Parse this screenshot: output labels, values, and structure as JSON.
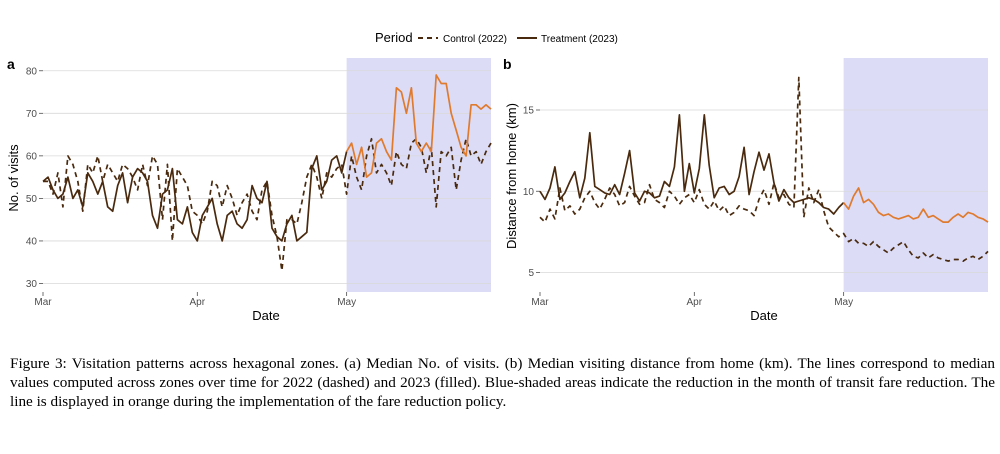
{
  "legend": {
    "title": "Period",
    "control_label": "Control (2022)",
    "treatment_label": "Treatment (2023)"
  },
  "colors": {
    "dark_line": "#4a2a0e",
    "policy_line": "#e07b2e",
    "shade": "#dcdcf7",
    "grid": "#d9d9d9"
  },
  "caption": "Figure 3: Visitation patterns across hexagonal zones. (a) Median No. of visits. (b) Median visiting distance from home (km). The lines correspond to median values computed across zones over time for 2022 (dashed) and 2023 (filled). Blue-shaded areas indicate the reduction in the month of transit fare reduction. The line is displayed in orange during the implementation of the fare reduction policy.",
  "chart_data": [
    {
      "type": "line",
      "panel": "a",
      "xlabel": "Date",
      "ylabel": "No. of visits",
      "x_unit": "day index from Mar 1",
      "x_ticks": [
        {
          "label": "Mar",
          "day": 0
        },
        {
          "label": "Apr",
          "day": 31
        },
        {
          "label": "May",
          "day": 61
        }
      ],
      "y_ticks": [
        30,
        40,
        50,
        60,
        70,
        80
      ],
      "xlim": [
        0,
        90
      ],
      "ylim": [
        28,
        83
      ],
      "shaded_region": {
        "from_day": 61,
        "to_day": 90
      },
      "policy_start_day": 61,
      "grid": true,
      "series": [
        {
          "name": "Control (2022)",
          "style": "dashed",
          "values": [
            54,
            54,
            51,
            56,
            48,
            60,
            58,
            54,
            47,
            58,
            56,
            60,
            54,
            58,
            56,
            54,
            58,
            57,
            55,
            52,
            58,
            53,
            60,
            58,
            45,
            58,
            40,
            57,
            55,
            53,
            47,
            46,
            44,
            47,
            54,
            53,
            48,
            53,
            50,
            46,
            49,
            51,
            47,
            45,
            52,
            54,
            46,
            41,
            33,
            45,
            45,
            44,
            49,
            55,
            58,
            55,
            50,
            56,
            55,
            57,
            58,
            51,
            60,
            55,
            52,
            60,
            64,
            56,
            58,
            56,
            53,
            61,
            58,
            57,
            63,
            64,
            62,
            56,
            62,
            48,
            61,
            60,
            62,
            52,
            59,
            64,
            60,
            61,
            58,
            61,
            63
          ]
        },
        {
          "name": "Treatment (2023)",
          "style": "solid",
          "values": [
            54,
            55,
            52,
            50,
            51,
            55,
            50,
            52,
            48,
            56,
            54,
            51,
            54,
            48,
            47,
            53,
            56,
            49,
            55,
            57,
            56,
            54,
            46,
            43,
            51,
            52,
            57,
            45,
            44,
            48,
            42,
            40,
            46,
            48,
            50,
            44,
            40,
            46,
            47,
            44,
            43,
            45,
            53,
            50,
            49,
            54,
            43,
            41,
            40,
            44,
            46,
            40,
            41,
            42,
            57,
            60,
            52,
            54,
            59,
            60,
            56,
            61,
            63,
            58,
            62,
            55,
            56,
            63,
            64,
            61,
            59,
            76,
            75,
            70,
            76,
            63,
            61,
            63,
            61,
            79,
            77,
            77,
            70,
            66,
            62,
            60,
            72,
            72,
            71,
            72,
            71
          ]
        }
      ]
    },
    {
      "type": "line",
      "panel": "b",
      "xlabel": "Date",
      "ylabel": "Distance from home (km)",
      "x_unit": "day index from Mar 1",
      "x_ticks": [
        {
          "label": "Mar",
          "day": 0
        },
        {
          "label": "Apr",
          "day": 31
        },
        {
          "label": "May",
          "day": 61
        }
      ],
      "y_ticks": [
        5,
        10,
        15
      ],
      "xlim": [
        0,
        90
      ],
      "ylim": [
        3.8,
        18.2
      ],
      "shaded_region": {
        "from_day": 61,
        "to_day": 90
      },
      "policy_start_day": 61,
      "grid": true,
      "series": [
        {
          "name": "Control (2022)",
          "style": "dashed",
          "values": [
            8.4,
            8.1,
            8.9,
            8.3,
            10.2,
            8.8,
            9.1,
            8.6,
            8.9,
            9.6,
            10.0,
            9.3,
            8.9,
            9.5,
            10.2,
            9.8,
            9.1,
            9.3,
            10.3,
            9.7,
            9.2,
            9.3,
            10.4,
            9.5,
            9.3,
            9.0,
            10.0,
            9.7,
            9.2,
            9.6,
            9.8,
            9.3,
            10.1,
            9.2,
            8.9,
            9.4,
            8.8,
            9.1,
            8.5,
            8.7,
            9.1,
            8.9,
            8.8,
            8.5,
            9.5,
            10.1,
            9.2,
            10.5,
            9.6,
            9.8,
            9.2,
            9.0,
            17.0,
            8.4,
            10.2,
            9.3,
            10.1,
            8.8,
            7.8,
            7.5,
            7.2,
            7.4,
            6.9,
            7.1,
            6.8,
            6.8,
            6.6,
            6.9,
            6.6,
            6.4,
            6.2,
            6.5,
            6.7,
            6.9,
            6.4,
            6.0,
            5.9,
            6.2,
            5.9,
            6.1,
            5.9,
            5.8,
            5.7,
            5.8,
            5.8,
            5.7,
            5.9,
            6.0,
            5.8,
            6.0,
            6.3
          ]
        },
        {
          "name": "Treatment (2023)",
          "style": "solid",
          "values": [
            10.0,
            9.5,
            10.2,
            11.5,
            9.5,
            9.9,
            10.6,
            11.2,
            9.6,
            10.8,
            13.6,
            10.3,
            10.1,
            9.9,
            9.8,
            10.4,
            9.8,
            11.1,
            12.5,
            9.9,
            9.4,
            10.0,
            9.9,
            9.6,
            9.7,
            10.6,
            10.3,
            11.5,
            14.7,
            10.0,
            11.7,
            9.9,
            11.4,
            14.7,
            11.6,
            9.6,
            10.2,
            10.3,
            9.8,
            10.0,
            10.9,
            12.7,
            9.8,
            11.2,
            12.4,
            11.3,
            12.3,
            10.5,
            9.4,
            10.1,
            9.6,
            9.3,
            9.4,
            9.5,
            9.6,
            9.5,
            9.3,
            9.0,
            8.9,
            8.6,
            9.0,
            9.3,
            8.9,
            9.7,
            10.2,
            9.3,
            9.5,
            9.2,
            8.7,
            8.5,
            8.6,
            8.4,
            8.3,
            8.4,
            8.5,
            8.3,
            8.4,
            8.9,
            8.4,
            8.5,
            8.3,
            8.1,
            8.1,
            8.4,
            8.6,
            8.4,
            8.7,
            8.6,
            8.4,
            8.3,
            8.1
          ]
        }
      ]
    }
  ]
}
